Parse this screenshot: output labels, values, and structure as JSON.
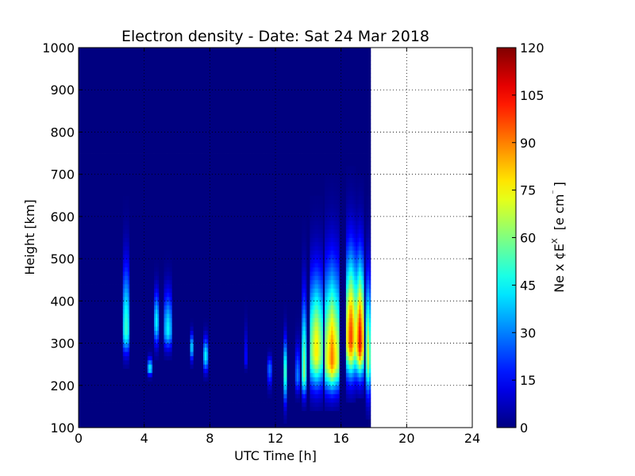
{
  "chart_data": {
    "type": "heatmap",
    "title": "Electron density - Date: Sat 24 Mar 2018",
    "xlabel": "UTC Time [h]",
    "ylabel": "Height [km]",
    "xlim": [
      0,
      24
    ],
    "ylim": [
      100,
      1000
    ],
    "x_ticks": [
      "0",
      "4",
      "8",
      "12",
      "16",
      "20",
      "24"
    ],
    "y_ticks": [
      "100",
      "200",
      "300",
      "400",
      "500",
      "600",
      "700",
      "800",
      "900",
      "1000"
    ],
    "grid": true,
    "data_extent_x": [
      0,
      17.8
    ],
    "background_value": 0,
    "colorbar": {
      "label": "Ne x ¢E",
      "label_superscript": "X",
      "label_unit": "[e cm",
      "label_unit_superscript": "⁻",
      "label_unit_end": "]",
      "range": [
        0,
        120
      ],
      "ticks": [
        "0",
        "15",
        "30",
        "45",
        "60",
        "75",
        "90",
        "105",
        "120"
      ],
      "colormap": "jet"
    },
    "blobs": [
      {
        "x": [
          2.7,
          3.1
        ],
        "y_peak": 330,
        "y_min": 240,
        "y_max": 650,
        "peak": 55
      },
      {
        "x": [
          4.2,
          4.5
        ],
        "y_peak": 240,
        "y_min": 215,
        "y_max": 290,
        "peak": 45
      },
      {
        "x": [
          4.6,
          4.9
        ],
        "y_peak": 350,
        "y_min": 260,
        "y_max": 500,
        "peak": 45
      },
      {
        "x": [
          5.2,
          5.7
        ],
        "y_peak": 330,
        "y_min": 260,
        "y_max": 520,
        "peak": 45
      },
      {
        "x": [
          6.8,
          7.0
        ],
        "y_peak": 290,
        "y_min": 240,
        "y_max": 360,
        "peak": 45
      },
      {
        "x": [
          7.6,
          7.9
        ],
        "y_peak": 270,
        "y_min": 210,
        "y_max": 360,
        "peak": 45
      },
      {
        "x": [
          10.1,
          10.3
        ],
        "y_peak": 260,
        "y_min": 230,
        "y_max": 420,
        "peak": 18
      },
      {
        "x": [
          11.5,
          11.8
        ],
        "y_peak": 240,
        "y_min": 170,
        "y_max": 300,
        "peak": 28
      },
      {
        "x": [
          12.5,
          12.7
        ],
        "y_peak": 230,
        "y_min": 110,
        "y_max": 400,
        "peak": 60
      },
      {
        "x": [
          13.2,
          13.5
        ],
        "y_peak": 220,
        "y_min": 160,
        "y_max": 380,
        "peak": 30
      },
      {
        "x": [
          13.6,
          13.9
        ],
        "y_peak": 230,
        "y_min": 140,
        "y_max": 600,
        "peak": 62
      },
      {
        "x": [
          14.1,
          14.9
        ],
        "y_peak": 280,
        "y_min": 140,
        "y_max": 650,
        "peak": 80
      },
      {
        "x": [
          15.0,
          15.9
        ],
        "y_peak": 260,
        "y_min": 140,
        "y_max": 700,
        "peak": 92
      },
      {
        "x": [
          16.3,
          16.9
        ],
        "y_peak": 310,
        "y_min": 160,
        "y_max": 720,
        "peak": 102
      },
      {
        "x": [
          16.9,
          17.4
        ],
        "y_peak": 300,
        "y_min": 170,
        "y_max": 700,
        "peak": 108
      },
      {
        "x": [
          17.5,
          17.8
        ],
        "y_peak": 270,
        "y_min": 120,
        "y_max": 650,
        "peak": 70
      }
    ],
    "gaps_x": [
      [
        13.9,
        14.1
      ],
      [
        15.9,
        16.3
      ],
      [
        17.4,
        17.5
      ]
    ]
  }
}
